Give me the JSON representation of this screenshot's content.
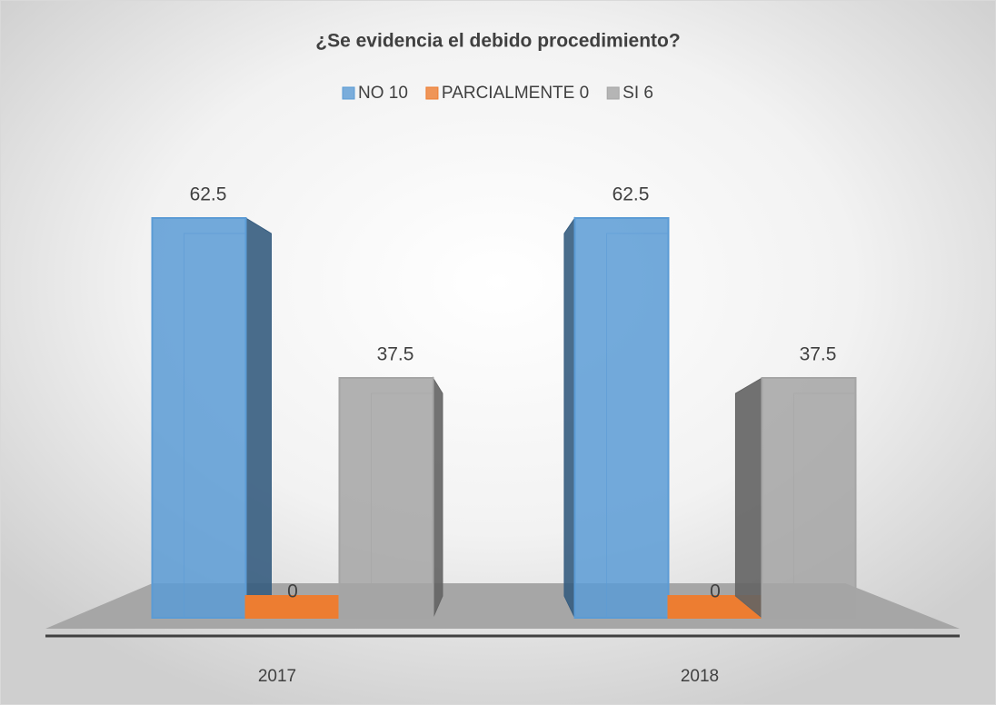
{
  "chart_data": {
    "type": "bar3d",
    "title": "¿Se evidencia el debido procedimiento?",
    "categories": [
      "2017",
      "2018"
    ],
    "series": [
      {
        "name": "NO 10",
        "color": "#5b9bd5",
        "values": [
          62.5,
          62.5
        ]
      },
      {
        "name": "PARCIALMENTE 0",
        "color": "#ed7d31",
        "values": [
          0,
          0
        ]
      },
      {
        "name": "SI 6",
        "color": "#a5a5a5",
        "values": [
          37.5,
          37.5
        ]
      }
    ]
  }
}
